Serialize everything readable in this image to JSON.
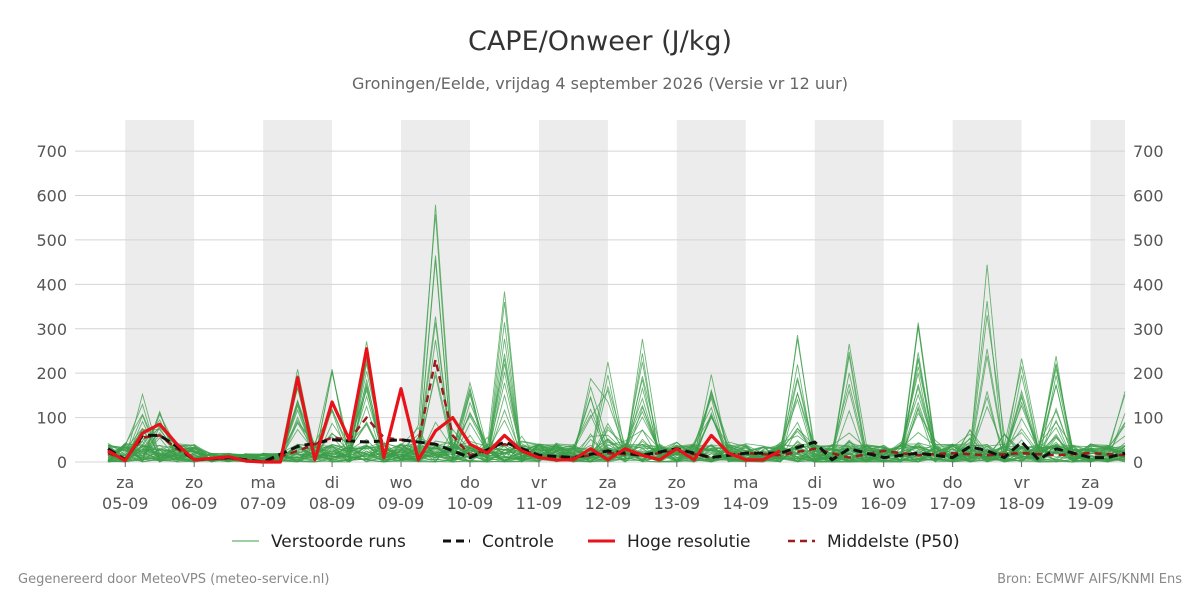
{
  "title": "CAPE/Onweer (J/kg)",
  "subtitle": "Groningen/Eelde, vrijdag  4 september 2026 (Versie vr 12 uur)",
  "footer": {
    "left": "Gegenereerd door MeteoVPS (meteo-service.nl)",
    "right": "Bron: ECMWF AIFS/KNMI Ens"
  },
  "colors": {
    "ensemble": "#3c9e4a",
    "control": "#111111",
    "hires": "#e8131a",
    "median": "#9b1c1c",
    "weekend_band": "#ececec",
    "grid": "#d4d4d4"
  },
  "chart_data": {
    "type": "line",
    "x_unit": "day offset from 05-09",
    "x_range": [
      -0.25,
      14.5
    ],
    "ylim": [
      0,
      770
    ],
    "yticks": [
      0,
      100,
      200,
      300,
      400,
      500,
      600,
      700
    ],
    "grid": true,
    "legend_position": "bottom",
    "weekend_bands": [
      [
        0,
        1
      ],
      [
        2,
        3
      ],
      [
        4,
        5
      ],
      [
        6,
        7
      ],
      [
        8,
        9
      ],
      [
        10,
        11
      ],
      [
        12,
        13
      ],
      [
        14,
        14.5
      ]
    ],
    "x_ticks": [
      {
        "day": "za",
        "date": "05-09"
      },
      {
        "day": "zo",
        "date": "06-09"
      },
      {
        "day": "ma",
        "date": "07-09"
      },
      {
        "day": "di",
        "date": "08-09"
      },
      {
        "day": "wo",
        "date": "09-09"
      },
      {
        "day": "do",
        "date": "10-09"
      },
      {
        "day": "vr",
        "date": "11-09"
      },
      {
        "day": "za",
        "date": "12-09"
      },
      {
        "day": "zo",
        "date": "13-09"
      },
      {
        "day": "ma",
        "date": "14-09"
      },
      {
        "day": "di",
        "date": "15-09"
      },
      {
        "day": "wo",
        "date": "16-09"
      },
      {
        "day": "do",
        "date": "17-09"
      },
      {
        "day": "vr",
        "date": "18-09"
      },
      {
        "day": "za",
        "date": "19-09"
      }
    ],
    "legend": [
      {
        "key": "ensemble",
        "label": "Verstoorde runs"
      },
      {
        "key": "control",
        "label": "Controle"
      },
      {
        "key": "hires",
        "label": "Hoge resolutie"
      },
      {
        "key": "median",
        "label": "Middelste (P50)"
      }
    ],
    "series": [
      {
        "name": "Hoge resolutie",
        "x": [
          -0.25,
          0,
          0.25,
          0.5,
          0.75,
          1,
          1.25,
          1.5,
          1.75,
          2,
          2.25,
          2.5,
          2.75,
          3,
          3.25,
          3.5,
          3.75,
          4,
          4.25,
          4.5,
          4.75,
          5,
          5.25,
          5.5,
          5.75,
          6,
          6.25,
          6.5,
          6.75,
          7,
          7.25,
          7.5,
          7.75,
          8,
          8.25,
          8.5,
          8.75,
          9,
          9.25,
          9.5
        ],
        "y": [
          25,
          3,
          65,
          85,
          40,
          5,
          8,
          12,
          2,
          0,
          0,
          190,
          5,
          135,
          50,
          255,
          10,
          165,
          5,
          70,
          100,
          40,
          20,
          60,
          25,
          10,
          5,
          5,
          30,
          5,
          30,
          15,
          5,
          30,
          5,
          60,
          20,
          5,
          5,
          25
        ]
      },
      {
        "name": "Controle",
        "x": [
          -0.25,
          0,
          0.25,
          0.5,
          0.75,
          1,
          1.5,
          2,
          2.5,
          3,
          3.5,
          4,
          4.5,
          5,
          5.5,
          6,
          6.5,
          7,
          7.5,
          8,
          8.5,
          9,
          9.5,
          10,
          10.25,
          10.5,
          11,
          11.5,
          12,
          12.25,
          12.5,
          12.75,
          13,
          13.25,
          13.5,
          13.75,
          14,
          14.25,
          14.5
        ],
        "y": [
          30,
          5,
          60,
          60,
          35,
          5,
          10,
          0,
          35,
          50,
          45,
          50,
          40,
          10,
          45,
          15,
          10,
          25,
          15,
          30,
          10,
          20,
          20,
          45,
          5,
          30,
          10,
          20,
          10,
          35,
          25,
          10,
          45,
          5,
          30,
          20,
          10,
          10,
          20
        ]
      },
      {
        "name": "Middelste (P50)",
        "x": [
          -0.25,
          0,
          0.25,
          0.5,
          0.75,
          1,
          1.5,
          2,
          2.5,
          3,
          3.25,
          3.5,
          3.75,
          4,
          4.25,
          4.5,
          4.75,
          5,
          5.5,
          6,
          6.5,
          7,
          7.5,
          8,
          8.5,
          9,
          9.5,
          10,
          10.5,
          11,
          11.5,
          12,
          12.5,
          13,
          13.5,
          14,
          14.5
        ],
        "y": [
          20,
          5,
          55,
          60,
          30,
          5,
          8,
          0,
          25,
          55,
          50,
          100,
          55,
          50,
          45,
          230,
          60,
          15,
          40,
          15,
          10,
          20,
          15,
          25,
          10,
          20,
          15,
          30,
          10,
          25,
          15,
          20,
          15,
          20,
          15,
          20,
          15
        ]
      }
    ]
  }
}
